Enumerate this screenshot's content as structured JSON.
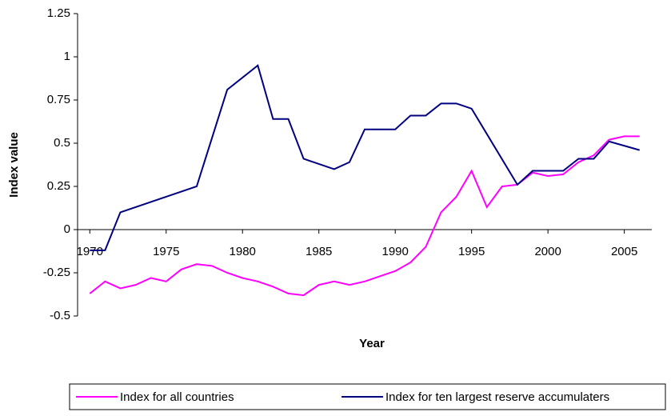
{
  "chart_data": {
    "type": "line",
    "x_label": "Year",
    "y_label": "Index value",
    "xlim": [
      1969.2,
      2006.8
    ],
    "xticks": [
      1970,
      1975,
      1980,
      1985,
      1990,
      1995,
      2000,
      2005
    ],
    "ylim": [
      -0.5,
      1.25
    ],
    "yticks": [
      -0.5,
      -0.25,
      0,
      0.25,
      0.5,
      0.75,
      1,
      1.25
    ],
    "legend": "bottom",
    "series": [
      {
        "name": "Index for all countries",
        "color": "#ff00ff",
        "x": [
          1970,
          1971,
          1972,
          1973,
          1974,
          1975,
          1976,
          1977,
          1978,
          1979,
          1980,
          1981,
          1982,
          1983,
          1984,
          1985,
          1986,
          1987,
          1988,
          1989,
          1990,
          1991,
          1992,
          1993,
          1994,
          1995,
          1996,
          1997,
          1998,
          1999,
          2000,
          2001,
          2002,
          2003,
          2004,
          2005,
          2006
        ],
        "values": [
          -0.37,
          -0.3,
          -0.34,
          -0.32,
          -0.28,
          -0.3,
          -0.23,
          -0.2,
          -0.21,
          -0.25,
          -0.28,
          -0.3,
          -0.33,
          -0.37,
          -0.38,
          -0.32,
          -0.3,
          -0.32,
          -0.3,
          -0.27,
          -0.24,
          -0.19,
          -0.1,
          0.1,
          0.19,
          0.34,
          0.13,
          0.25,
          0.26,
          0.33,
          0.31,
          0.32,
          0.39,
          0.43,
          0.52,
          0.54,
          0.54
        ]
      },
      {
        "name": "Index for ten largest reserve accumulaters",
        "color": "#000080",
        "x": [
          1970,
          1971,
          1972,
          1977,
          1979,
          1981,
          1982,
          1983,
          1984,
          1986,
          1987,
          1988,
          1990,
          1991,
          1992,
          1993,
          1994,
          1995,
          1998,
          1999,
          2001,
          2002,
          2003,
          2004,
          2006
        ],
        "values": [
          -0.12,
          -0.12,
          0.1,
          0.25,
          0.81,
          0.95,
          0.64,
          0.64,
          0.41,
          0.35,
          0.39,
          0.58,
          0.58,
          0.66,
          0.66,
          0.73,
          0.73,
          0.7,
          0.26,
          0.34,
          0.34,
          0.41,
          0.41,
          0.51,
          0.46
        ]
      }
    ]
  }
}
